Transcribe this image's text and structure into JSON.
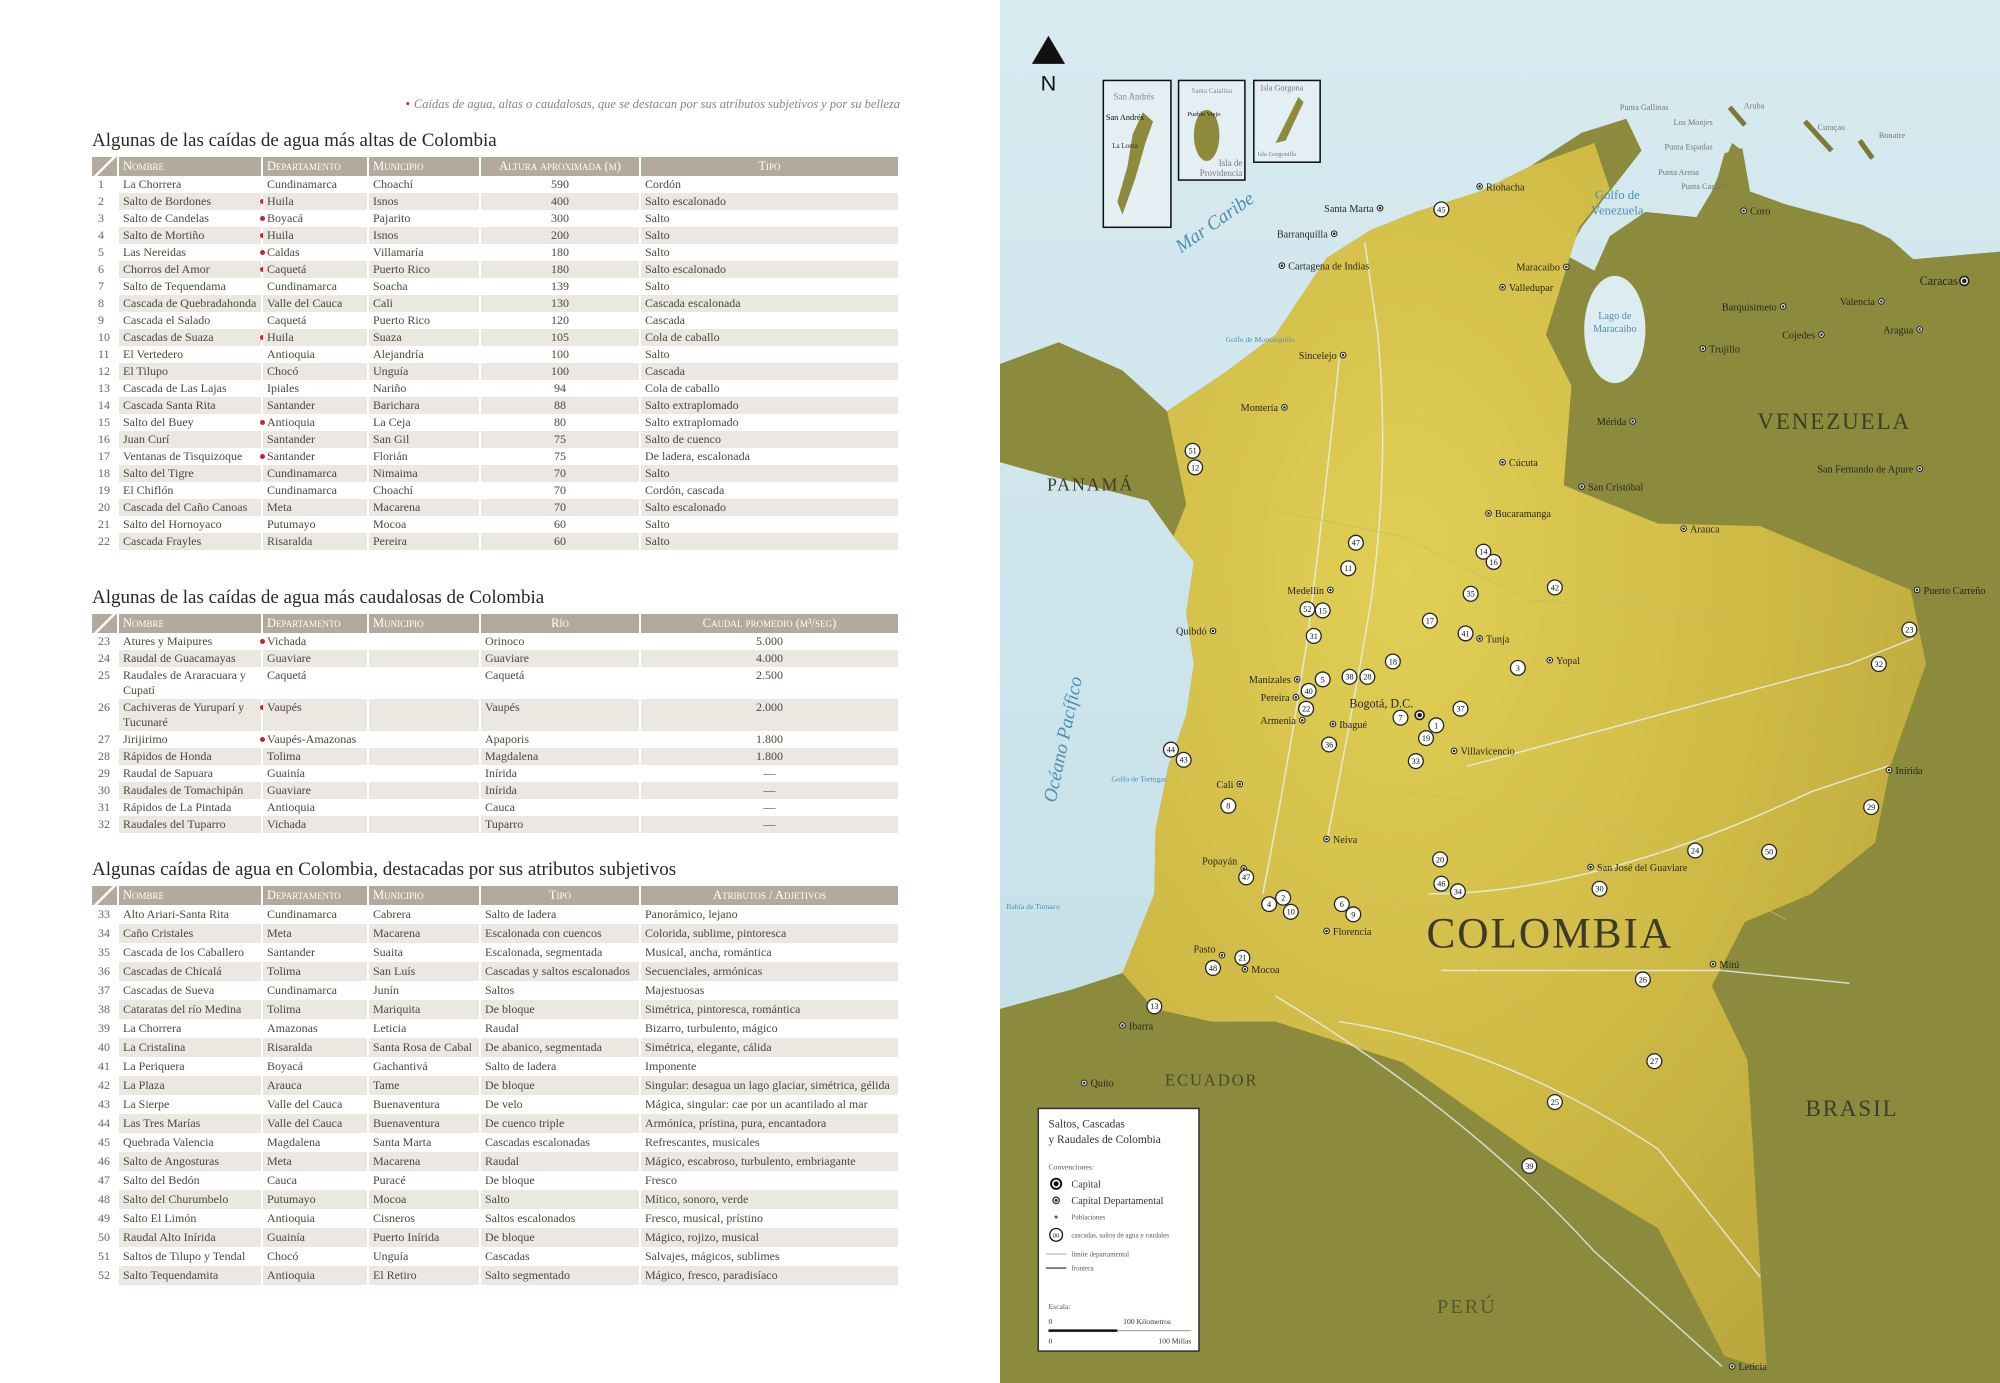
{
  "note": {
    "star": "•",
    "text": "Caídas de agua, altas o caudalosas, que se destacan por sus atributos subjetivos y por su belleza"
  },
  "tables": [
    {
      "title": "Algunas de las caídas de agua más altas de Colombia",
      "headers": [
        "",
        "Nombre",
        "Departamento",
        "Municipio",
        "Altura aproximada (m)",
        "Tipo"
      ],
      "rows": [
        {
          "n": "1",
          "name": "La Chorrera",
          "star": false,
          "dep": "Cundinamarca",
          "mun": "Choachí",
          "val": "590",
          "tipo": "Cordón"
        },
        {
          "n": "2",
          "name": "Salto de Bordones",
          "star": true,
          "dep": "Huila",
          "mun": "Isnos",
          "val": "400",
          "tipo": "Salto escalonado"
        },
        {
          "n": "3",
          "name": "Salto de Candelas",
          "star": true,
          "dep": "Boyacá",
          "mun": "Pajarito",
          "val": "300",
          "tipo": "Salto"
        },
        {
          "n": "4",
          "name": "Salto de Mortiño",
          "star": true,
          "dep": "Huila",
          "mun": "Isnos",
          "val": "200",
          "tipo": "Salto"
        },
        {
          "n": "5",
          "name": "Las Nereidas",
          "star": true,
          "dep": "Caldas",
          "mun": "Villamaría",
          "val": "180",
          "tipo": "Salto"
        },
        {
          "n": "6",
          "name": "Chorros del Amor",
          "star": true,
          "dep": "Caquetá",
          "mun": "Puerto Rico",
          "val": "180",
          "tipo": "Salto escalonado"
        },
        {
          "n": "7",
          "name": "Salto de Tequendama",
          "star": false,
          "dep": "Cundinamarca",
          "mun": "Soacha",
          "val": "139",
          "tipo": "Salto"
        },
        {
          "n": "8",
          "name": "Cascada de Quebradahonda",
          "star": false,
          "dep": "Valle del Cauca",
          "mun": "Cali",
          "val": "130",
          "tipo": "Cascada escalonada"
        },
        {
          "n": "9",
          "name": "Cascada el Salado",
          "star": false,
          "dep": "Caquetá",
          "mun": "Puerto Rico",
          "val": "120",
          "tipo": "Cascada"
        },
        {
          "n": "10",
          "name": "Cascadas de Suaza",
          "star": true,
          "dep": "Huila",
          "mun": "Suaza",
          "val": "105",
          "tipo": "Cola de caballo"
        },
        {
          "n": "11",
          "name": "El Vertedero",
          "star": false,
          "dep": "Antioquia",
          "mun": "Alejandría",
          "val": "100",
          "tipo": "Salto"
        },
        {
          "n": "12",
          "name": "El Tilupo",
          "star": false,
          "dep": "Chocó",
          "mun": "Unguía",
          "val": "100",
          "tipo": "Cascada"
        },
        {
          "n": "13",
          "name": "Cascada de Las Lajas",
          "star": false,
          "dep": "Ipiales",
          "mun": "Nariño",
          "val": "94",
          "tipo": "Cola de caballo"
        },
        {
          "n": "14",
          "name": "Cascada Santa Rita",
          "star": false,
          "dep": "Santander",
          "mun": "Barichara",
          "val": "88",
          "tipo": "Salto extraplomado"
        },
        {
          "n": "15",
          "name": "Salto del Buey",
          "star": true,
          "dep": "Antioquia",
          "mun": "La Ceja",
          "val": "80",
          "tipo": "Salto extraplomado"
        },
        {
          "n": "16",
          "name": "Juan Curí",
          "star": false,
          "dep": "Santander",
          "mun": "San Gil",
          "val": "75",
          "tipo": "Salto de cuenco"
        },
        {
          "n": "17",
          "name": "Ventanas de Tisquizoque",
          "star": true,
          "dep": "Santander",
          "mun": "Florián",
          "val": "75",
          "tipo": "De ladera, escalonada"
        },
        {
          "n": "18",
          "name": "Salto del Tigre",
          "star": false,
          "dep": "Cundinamarca",
          "mun": "Nimaima",
          "val": "70",
          "tipo": "Salto"
        },
        {
          "n": "19",
          "name": "El Chiflón",
          "star": false,
          "dep": "Cundinamarca",
          "mun": "Choachí",
          "val": "70",
          "tipo": "Cordón, cascada"
        },
        {
          "n": "20",
          "name": "Cascada del Caño Canoas",
          "star": false,
          "dep": "Meta",
          "mun": "Macarena",
          "val": "70",
          "tipo": "Salto escalonado"
        },
        {
          "n": "21",
          "name": "Salto del Hornoyaco",
          "star": false,
          "dep": "Putumayo",
          "mun": "Mocoa",
          "val": "60",
          "tipo": "Salto"
        },
        {
          "n": "22",
          "name": "Cascada Frayles",
          "star": false,
          "dep": "Risaralda",
          "mun": "Pereira",
          "val": "60",
          "tipo": "Salto"
        }
      ]
    },
    {
      "title": "Algunas de las caídas de agua más caudalosas de Colombia",
      "headers": [
        "",
        "Nombre",
        "Departamento",
        "Municipio",
        "Río",
        "Caudal promedio (m³/seg)"
      ],
      "rows": [
        {
          "n": "23",
          "name": "Atures y Maipures",
          "star": true,
          "dep": "Vichada",
          "mun": "",
          "val": "Orinoco",
          "tipo": "5.000"
        },
        {
          "n": "24",
          "name": "Raudal de Guacamayas",
          "star": false,
          "dep": "Guaviare",
          "mun": "",
          "val": "Guaviare",
          "tipo": "4.000"
        },
        {
          "n": "25",
          "name": "Raudales de Araracuara y Cupatí",
          "star": false,
          "dep": "Caquetá",
          "mun": "",
          "val": "Caquetá",
          "tipo": "2.500"
        },
        {
          "n": "26",
          "name": "Cachiveras de Yuruparí y Tucunaré",
          "star": true,
          "dep": "Vaupés",
          "mun": "",
          "val": "Vaupés",
          "tipo": "2.000"
        },
        {
          "n": "27",
          "name": "Jirijirimo",
          "star": true,
          "dep": "Vaupés-Amazonas",
          "mun": "",
          "val": "Apaporis",
          "tipo": "1.800"
        },
        {
          "n": "28",
          "name": "Rápidos de Honda",
          "star": false,
          "dep": "Tolima",
          "mun": "",
          "val": "Magdalena",
          "tipo": "1.800"
        },
        {
          "n": "29",
          "name": "Raudal de Sapuara",
          "star": false,
          "dep": "Guainía",
          "mun": "",
          "val": "Inírida",
          "tipo": "—"
        },
        {
          "n": "30",
          "name": "Raudales de Tomachipán",
          "star": false,
          "dep": "Guaviare",
          "mun": "",
          "val": "Inírida",
          "tipo": "—"
        },
        {
          "n": "31",
          "name": "Rápidos de La Pintada",
          "star": false,
          "dep": "Antioquia",
          "mun": "",
          "val": "Cauca",
          "tipo": "—"
        },
        {
          "n": "32",
          "name": "Raudales del Tuparro",
          "star": false,
          "dep": "Vichada",
          "mun": "",
          "val": "Tuparro",
          "tipo": "—"
        }
      ]
    },
    {
      "title": "Algunas caídas de agua en Colombia, destacadas por sus atributos subjetivos",
      "headers": [
        "",
        "Nombre",
        "Departamento",
        "Municipio",
        "Tipo",
        "Atributos / Adjetivos"
      ],
      "rows": [
        {
          "n": "33",
          "name": "Alto Ariari-Santa Rita",
          "star": false,
          "dep": "Cundinamarca",
          "mun": "Cabrera",
          "val": "Salto de ladera",
          "tipo": "Panorámico, lejano"
        },
        {
          "n": "34",
          "name": "Caño Cristales",
          "star": false,
          "dep": "Meta",
          "mun": "Macarena",
          "val": "Escalonada con cuencos",
          "tipo": "Colorida, sublime, pintoresca"
        },
        {
          "n": "35",
          "name": "Cascada de los Caballero",
          "star": false,
          "dep": "Santander",
          "mun": "Suaita",
          "val": "Escalonada, segmentada",
          "tipo": "Musical, ancha, romántica"
        },
        {
          "n": "36",
          "name": "Cascadas de Chicalá",
          "star": false,
          "dep": "Tolima",
          "mun": "San Luís",
          "val": "Cascadas y saltos escalonados",
          "tipo": "Secuenciales, armónicas"
        },
        {
          "n": "37",
          "name": "Cascadas de Sueva",
          "star": false,
          "dep": "Cundinamarca",
          "mun": "Junín",
          "val": "Saltos",
          "tipo": "Majestuosas"
        },
        {
          "n": "38",
          "name": "Cataratas del río Medina",
          "star": false,
          "dep": "Tolima",
          "mun": "Mariquita",
          "val": "De bloque",
          "tipo": "Simétrica, pintoresca, romántica"
        },
        {
          "n": "39",
          "name": "La Chorrera",
          "star": false,
          "dep": "Amazonas",
          "mun": "Leticia",
          "val": "Raudal",
          "tipo": "Bizarro, turbulento, mágico"
        },
        {
          "n": "40",
          "name": "La Cristalina",
          "star": false,
          "dep": "Risaralda",
          "mun": "Santa Rosa de Cabal",
          "val": "De abanico, segmentada",
          "tipo": "Simétrica, elegante, cálida"
        },
        {
          "n": "41",
          "name": "La Periquera",
          "star": false,
          "dep": "Boyacá",
          "mun": "Gachantivá",
          "val": "Salto de ladera",
          "tipo": "Imponente"
        },
        {
          "n": "42",
          "name": "La Plaza",
          "star": false,
          "dep": "Arauca",
          "mun": "Tame",
          "val": "De bloque",
          "tipo": "Singular: desagua un lago glaciar, simétrica, gélida"
        },
        {
          "n": "43",
          "name": "La Sierpe",
          "star": false,
          "dep": "Valle del Cauca",
          "mun": "Buenaventura",
          "val": "De velo",
          "tipo": "Mágica, singular: cae por un acantilado al mar"
        },
        {
          "n": "44",
          "name": "Las Tres Marías",
          "star": false,
          "dep": "Valle del Cauca",
          "mun": "Buenaventura",
          "val": "De cuenco triple",
          "tipo": "Armónica, prístina, pura, encantadora"
        },
        {
          "n": "45",
          "name": "Quebrada Valencia",
          "star": false,
          "dep": "Magdalena",
          "mun": "Santa Marta",
          "val": "Cascadas escalonadas",
          "tipo": "Refrescantes, musicales"
        },
        {
          "n": "46",
          "name": "Salto de Angosturas",
          "star": false,
          "dep": "Meta",
          "mun": "Macarena",
          "val": "Raudal",
          "tipo": "Mágico, escabroso, turbulento, embriagante"
        },
        {
          "n": "47",
          "name": "Salto del Bedón",
          "star": false,
          "dep": "Cauca",
          "mun": "Puracé",
          "val": "De bloque",
          "tipo": "Fresco"
        },
        {
          "n": "48",
          "name": "Salto del Churumbelo",
          "star": false,
          "dep": "Putumayo",
          "mun": "Mocoa",
          "val": "Salto",
          "tipo": "Mítico, sonoro, verde"
        },
        {
          "n": "49",
          "name": "Salto El Limón",
          "star": false,
          "dep": "Antioquia",
          "mun": "Cisneros",
          "val": "Saltos escalonados",
          "tipo": "Fresco, musical, prístino"
        },
        {
          "n": "50",
          "name": "Raudal Alto Inírida",
          "star": false,
          "dep": "Guainía",
          "mun": "Puerto Inírida",
          "val": "De bloque",
          "tipo": "Mágico, rojizo, musical"
        },
        {
          "n": "51",
          "name": "Saltos de Tilupo y Tendal",
          "star": false,
          "dep": "Chocó",
          "mun": "Unguía",
          "val": "Cascadas",
          "tipo": "Salvajes, mágicos, sublimes"
        },
        {
          "n": "52",
          "name": "Salto Tequendamita",
          "star": false,
          "dep": "Antioquia",
          "mun": "El Retiro",
          "val": "Salto segmentado",
          "tipo": "Mágico, fresco, paradisíaco"
        }
      ]
    }
  ],
  "map": {
    "north": "N",
    "colors": {
      "sea": "#dcecf1",
      "land": "#8f8a3a",
      "colombia": "#d6c24a",
      "marker": "#ffffff",
      "star": "#d0202a",
      "header": "#b3a99c"
    },
    "insets": [
      {
        "title": "San Andrés",
        "labels": [
          "San Andrés",
          "La Loma"
        ]
      },
      {
        "title": "Santa Catalina",
        "labels": [
          "Pueblo Viejo",
          "Isla de",
          "Providencia"
        ]
      },
      {
        "title": "Isla Gorgona",
        "labels": [
          "Isla Gorgonilla"
        ]
      }
    ],
    "countries": [
      "COLOMBIA",
      "VENEZUELA",
      "PANAMÁ",
      "ECUADOR",
      "PERÚ",
      "BRASIL"
    ],
    "water": [
      "Mar Caribe",
      "Océano Pacífico",
      "Golfo de",
      "Venezuela",
      "Lago de",
      "Maracaibo",
      "Golfo de Tortugas",
      "Bahía de Tumaco",
      "Golfo de Morrosquillo"
    ],
    "islands": [
      "Aruba",
      "Curaçao",
      "Bonaire",
      "Los Monjes",
      "Punta Gallinas",
      "Punta Espadas",
      "Punta Arena",
      "Punta Cardón"
    ],
    "cities": [
      "Santa Marta",
      "Barranquilla",
      "Cartagena de Indias",
      "Riohacha",
      "Valledupar",
      "Sincelejo",
      "Montería",
      "Medellín",
      "Quibdó",
      "Manizales",
      "Pereira",
      "Armenia",
      "Ibagué",
      "Bogotá, D.C.",
      "Tunja",
      "Yopal",
      "Villavicencio",
      "Neiva",
      "Popayán",
      "Florencia",
      "Mocoa",
      "Pasto",
      "Cali",
      "Bucaramanga",
      "Cúcuta",
      "Arauca",
      "San José del Guaviare",
      "Puerto Carreño",
      "Inírida",
      "Mitú",
      "Leticia",
      "Quito",
      "Ibarra",
      "Caracas",
      "Barquisimeto",
      "Maracaibo",
      "Mérida",
      "San Cristóbal",
      "Valencia",
      "Coro",
      "Cojedes",
      "Trujillo",
      "Aragua",
      "San Fernando de Apure"
    ],
    "markers": [
      "45",
      "51",
      "12",
      "47",
      "11",
      "14",
      "16",
      "42",
      "35",
      "52",
      "15",
      "17",
      "41",
      "31",
      "18",
      "3",
      "38",
      "28",
      "5",
      "40",
      "22",
      "37",
      "7",
      "1",
      "19",
      "36",
      "44",
      "43",
      "33",
      "8",
      "23",
      "32",
      "29",
      "24",
      "50",
      "20",
      "47",
      "46",
      "34",
      "30",
      "4",
      "2",
      "10",
      "6",
      "9",
      "21",
      "48",
      "26",
      "13",
      "27",
      "25",
      "39"
    ],
    "legend": {
      "title_line1": "Saltos, Cascadas",
      "title_line2": "y Raudales de Colombia",
      "conventions": "Convenciones:",
      "items": [
        "Capital",
        "Capital Departamental",
        "Poblaciones",
        "cascadas, saltos de agua y raudales",
        "límite departamental",
        "frontera"
      ],
      "marker_sample": "00",
      "scale_label": "Escala:",
      "scale_zero": "0",
      "km": "100 Kilometros",
      "miles": "100 Millas"
    }
  }
}
